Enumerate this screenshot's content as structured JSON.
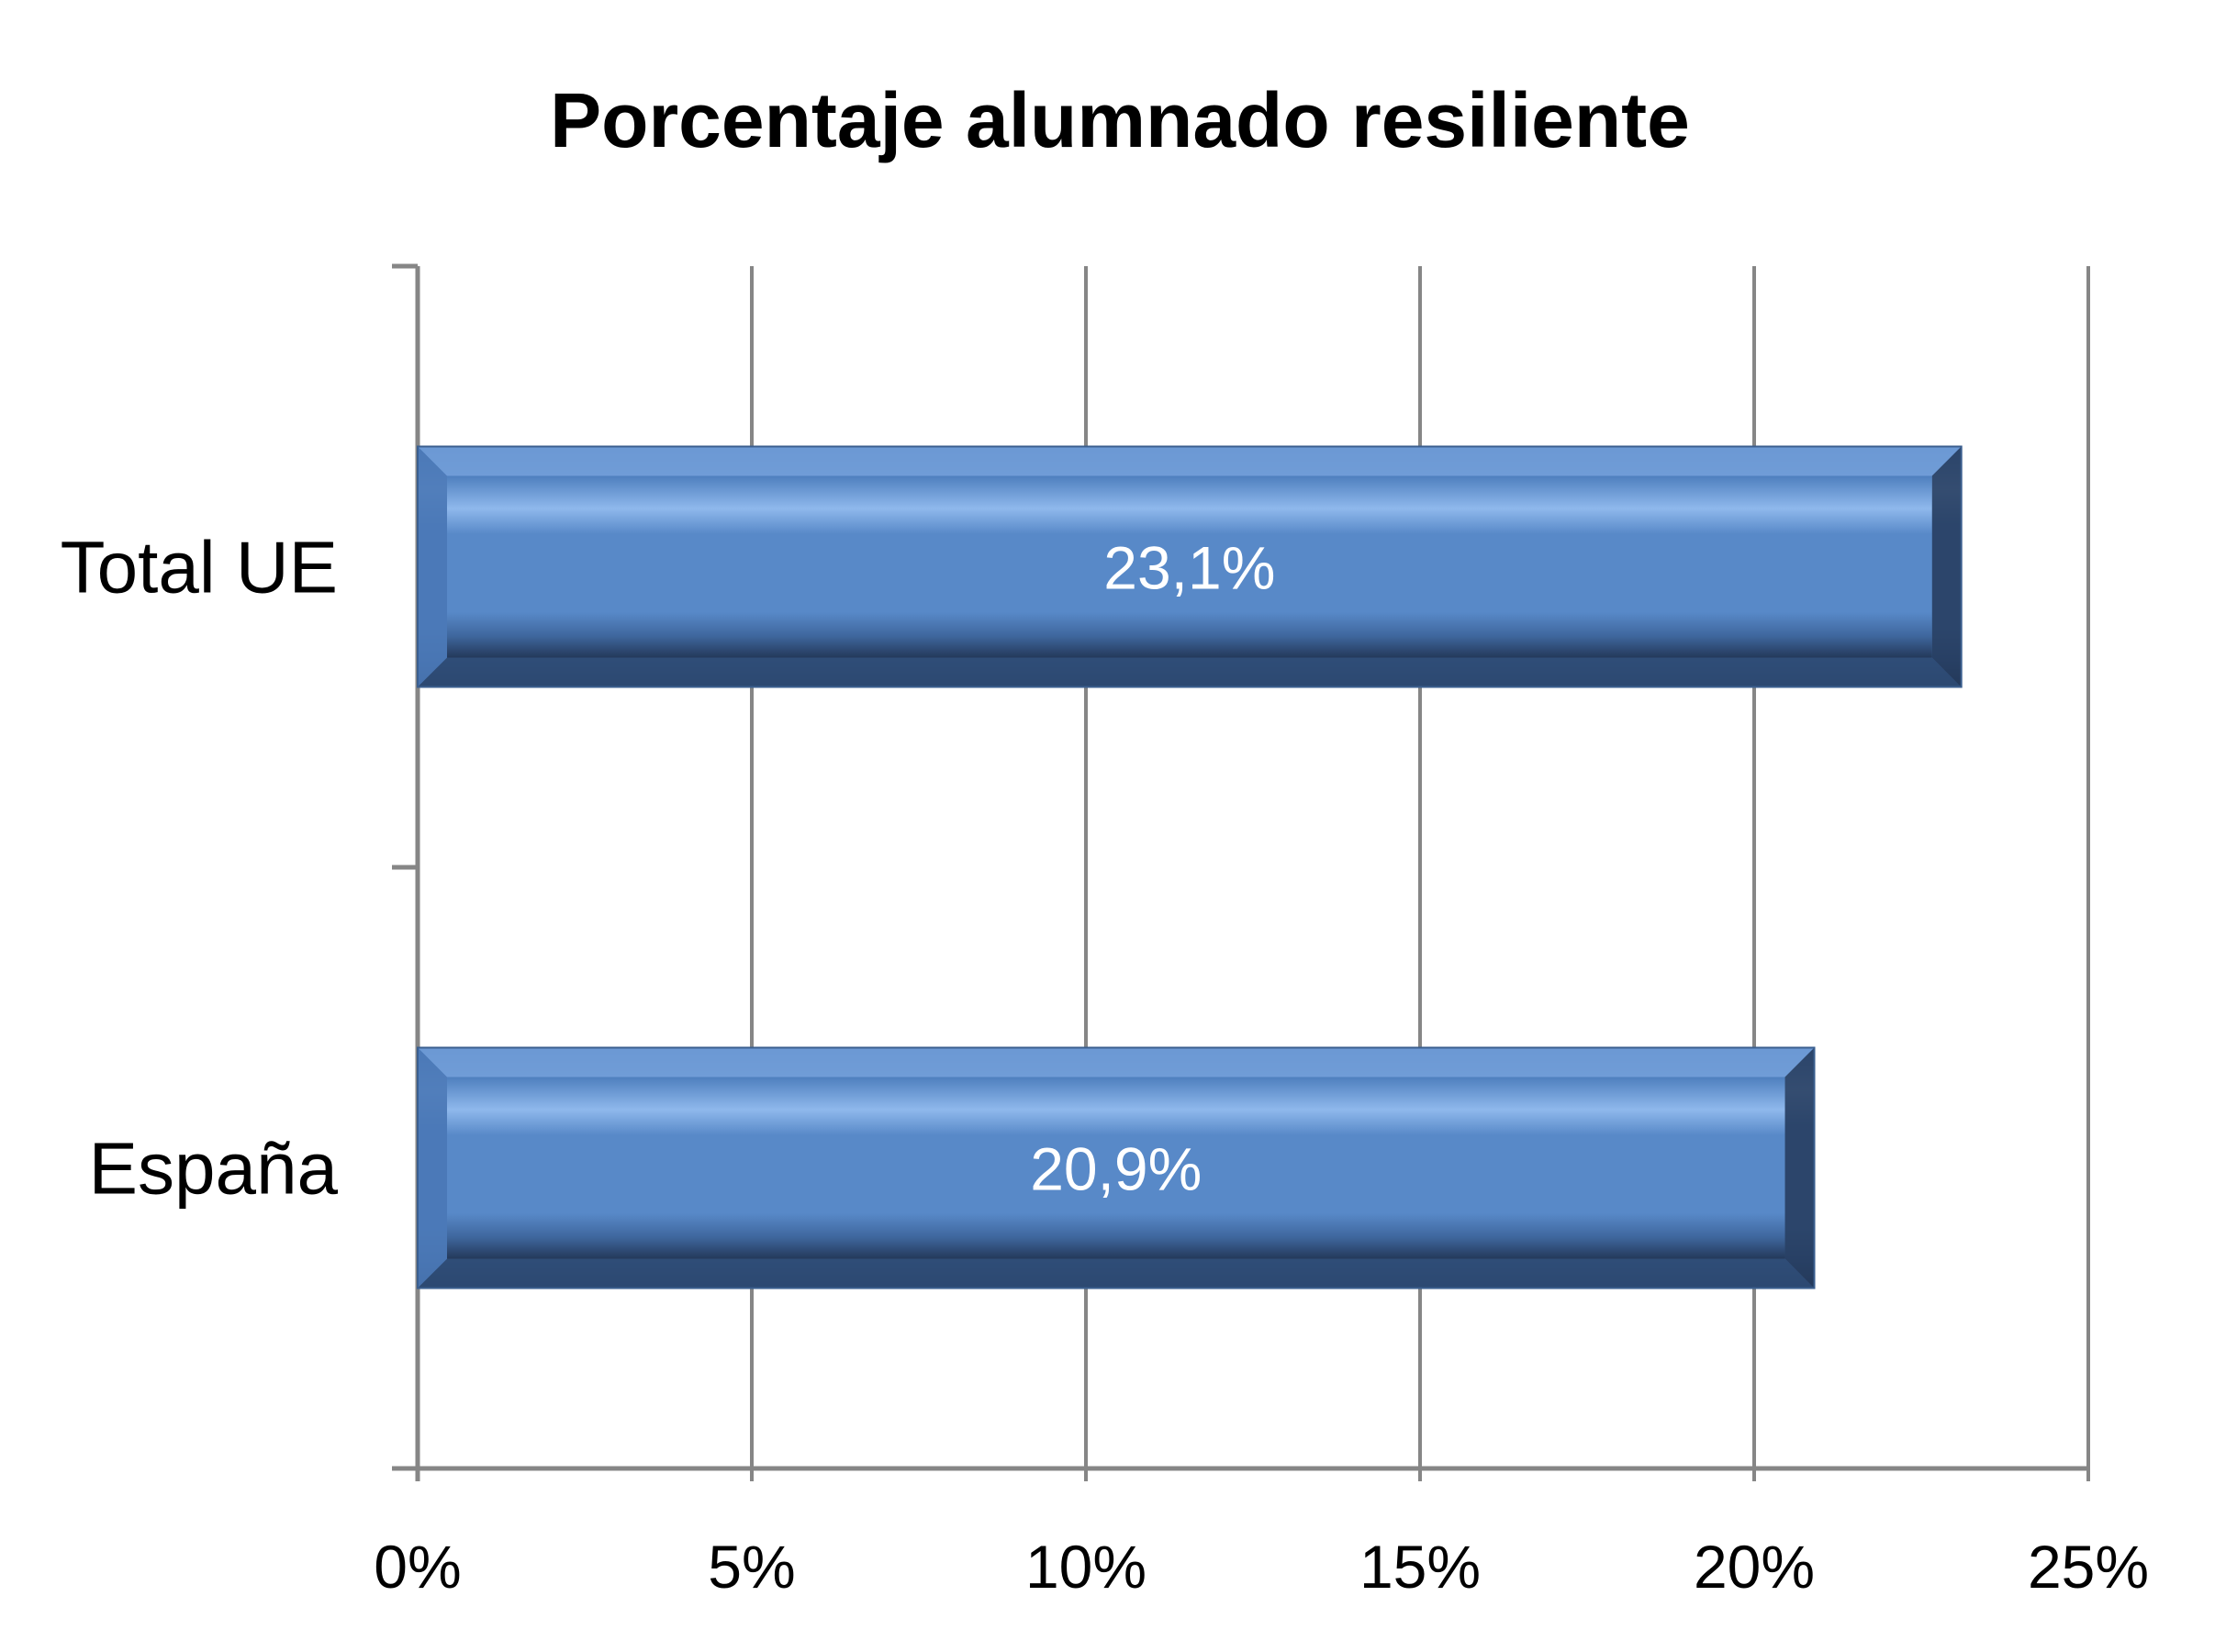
{
  "chart_data": {
    "type": "bar",
    "orientation": "horizontal",
    "title": "Porcentaje alumnado resiliente",
    "categories": [
      "Total UE",
      "España"
    ],
    "values": [
      23.1,
      20.9
    ],
    "data_labels": [
      "23,1%",
      "20,9%"
    ],
    "xlim": [
      0,
      25
    ],
    "x_ticks": [
      0,
      5,
      10,
      15,
      20,
      25
    ],
    "x_tick_labels": [
      "0%",
      "5%",
      "10%",
      "15%",
      "20%",
      "25%"
    ],
    "grid": true,
    "legend": "none",
    "colors": {
      "bar": "#5889C8",
      "bar_light": "#8FB8EC",
      "bar_dark": "#24395A",
      "grid": "#868686",
      "data_label": "#FFFFFF"
    }
  }
}
